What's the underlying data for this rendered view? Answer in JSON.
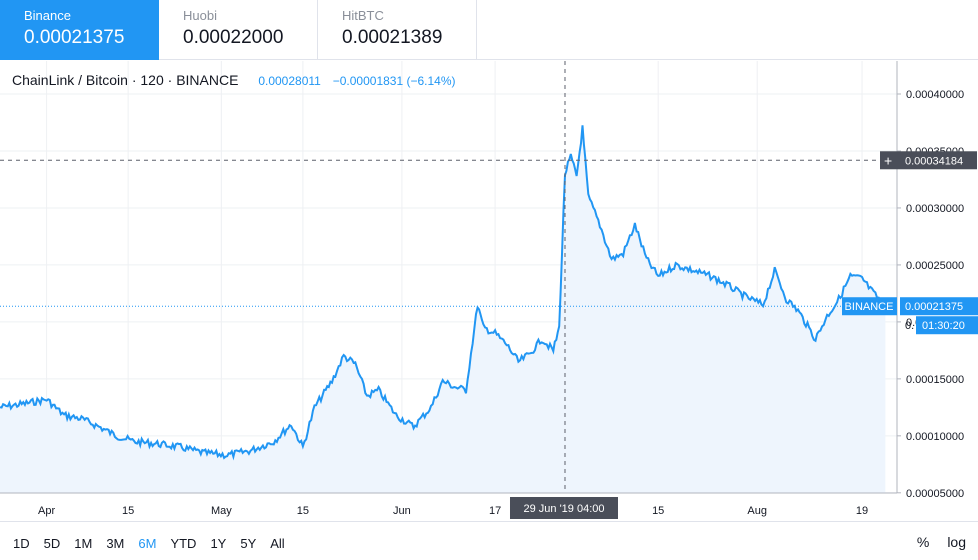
{
  "exchanges": [
    {
      "name": "Binance",
      "price": "0.00021375",
      "active": true
    },
    {
      "name": "Huobi",
      "price": "0.00022000",
      "active": false
    },
    {
      "name": "HitBTC",
      "price": "0.00021389",
      "active": false
    }
  ],
  "header": {
    "symbol": "ChainLink / Bitcoin · 120 · BINANCE",
    "last": "0.00028011",
    "change": "−0.00001831 (−6.14%)"
  },
  "colors": {
    "accent": "#2196f3",
    "line": "#2196f3",
    "fill": "#eef5fd",
    "grid": "#eef0f3",
    "crosshair": "#5d606b",
    "dark_label": "#4a4e59"
  },
  "crosshair": {
    "price_label": "0.00034184",
    "time_label": "29 Jun '19   04:00"
  },
  "last_price_label": {
    "exchange": "BINANCE",
    "price": "0.00021375",
    "countdown": "01:30:20",
    "partial": "0."
  },
  "ranges": [
    {
      "label": "1D",
      "active": false
    },
    {
      "label": "5D",
      "active": false
    },
    {
      "label": "1M",
      "active": false
    },
    {
      "label": "3M",
      "active": false
    },
    {
      "label": "6M",
      "active": true
    },
    {
      "label": "YTD",
      "active": false
    },
    {
      "label": "1Y",
      "active": false
    },
    {
      "label": "5Y",
      "active": false
    },
    {
      "label": "All",
      "active": false
    }
  ],
  "controls": {
    "percent": "%",
    "log": "log"
  },
  "chart_data": {
    "type": "area",
    "title": "ChainLink / Bitcoin · 120 · BINANCE",
    "x_ticks": [
      "Apr",
      "15",
      "May",
      "15",
      "Jun",
      "17",
      "15",
      "Aug",
      "19"
    ],
    "y_ticks": [
      "0.00040000",
      "0.00035000",
      "0.00030000",
      "0.00025000",
      "0.00020000",
      "0.00015000",
      "0.00010000",
      "0.00005000"
    ],
    "ylim": [
      4.983e-05,
      0.00042897
    ],
    "grid": true,
    "series": [
      {
        "name": "BINANCE",
        "x": [
          "2019-03-24",
          "2019-03-28",
          "2019-04-01",
          "2019-04-04",
          "2019-04-07",
          "2019-04-10",
          "2019-04-13",
          "2019-04-16",
          "2019-04-20",
          "2019-04-24",
          "2019-04-28",
          "2019-05-02",
          "2019-05-06",
          "2019-05-10",
          "2019-05-13",
          "2019-05-15",
          "2019-05-17",
          "2019-05-20",
          "2019-05-22",
          "2019-05-24",
          "2019-05-26",
          "2019-05-28",
          "2019-05-31",
          "2019-06-03",
          "2019-06-06",
          "2019-06-08",
          "2019-06-10",
          "2019-06-12",
          "2019-06-14",
          "2019-06-15",
          "2019-06-17",
          "2019-06-19",
          "2019-06-21",
          "2019-06-23",
          "2019-06-25",
          "2019-06-27",
          "2019-06-28",
          "2019-06-29",
          "2019-06-30",
          "2019-07-01",
          "2019-07-02",
          "2019-07-03",
          "2019-07-05",
          "2019-07-07",
          "2019-07-09",
          "2019-07-11",
          "2019-07-13",
          "2019-07-15",
          "2019-07-18",
          "2019-07-21",
          "2019-07-24",
          "2019-07-27",
          "2019-07-30",
          "2019-08-02",
          "2019-08-04",
          "2019-08-06",
          "2019-08-08",
          "2019-08-11",
          "2019-08-13",
          "2019-08-15",
          "2019-08-17",
          "2019-08-19",
          "2019-08-21",
          "2019-08-23"
        ],
        "y": [
          0.000125,
          0.000128,
          0.000132,
          0.000118,
          0.000115,
          0.000108,
          0.0001,
          9.5e-05,
          9.3e-05,
          9e-05,
          8.5e-05,
          8.3e-05,
          8.7e-05,
          9.5e-05,
          0.00011,
          9e-05,
          0.000125,
          0.000148,
          0.00017,
          0.000163,
          0.000135,
          0.00014,
          0.000118,
          0.000108,
          0.000125,
          0.000148,
          0.000143,
          0.00014,
          0.000215,
          0.000195,
          0.00019,
          0.00018,
          0.000165,
          0.000172,
          0.000185,
          0.000175,
          0.000195,
          0.00033,
          0.000345,
          0.000328,
          0.00037,
          0.00031,
          0.000285,
          0.000255,
          0.00026,
          0.000285,
          0.000255,
          0.00024,
          0.00025,
          0.000245,
          0.00024,
          0.000232,
          0.000222,
          0.000215,
          0.000245,
          0.00022,
          0.00021,
          0.000185,
          0.000205,
          0.00022,
          0.00024,
          0.000238,
          0.000225,
          0.000214
        ]
      }
    ]
  }
}
